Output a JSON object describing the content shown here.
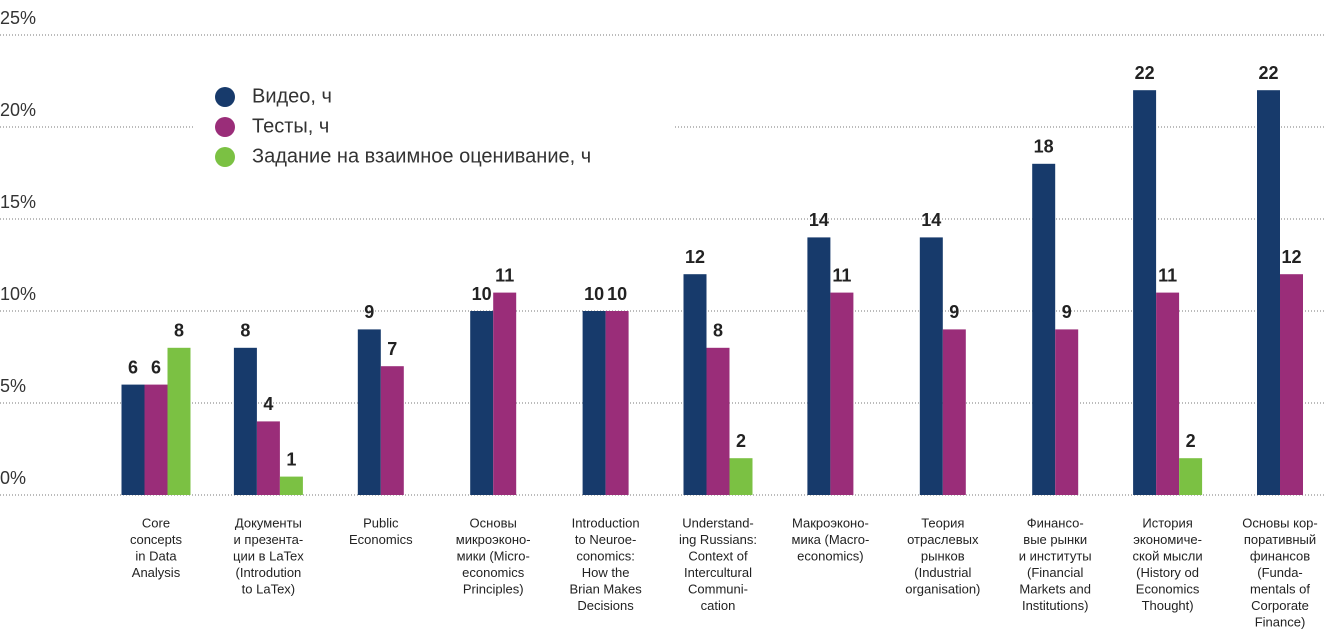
{
  "chart_data": {
    "type": "bar",
    "categories": [
      [
        "Core",
        "concepts",
        "in Data",
        "Analysis"
      ],
      [
        "Документы",
        "и презента-",
        "ции в LaTex",
        "(Introdution",
        "to LaTex)"
      ],
      [
        "Public",
        "Economics"
      ],
      [
        "Основы",
        "микроэконо-",
        "мики (Micro-",
        "economics",
        "Principles)"
      ],
      [
        "Introduction",
        "to Neuroe-",
        "conomics:",
        "How the",
        "Brian Makes",
        "Decisions"
      ],
      [
        "Understand-",
        "ing Russians:",
        "Context of",
        "Intercultural",
        "Communi-",
        "cation"
      ],
      [
        "Макроэконо-",
        "мика (Macro-",
        "economics)"
      ],
      [
        "Теория",
        "отраслевых",
        "рынков",
        "(Industrial",
        "organisation)"
      ],
      [
        "Финансо-",
        "вые рынки",
        "и институты",
        "(Financial",
        "Markets and",
        "Institutions)"
      ],
      [
        "История",
        "экономиче-",
        "ской мысли",
        "(History od",
        "Economics",
        "Thought)"
      ],
      [
        "Основы кор-",
        "поративный",
        "финансов",
        "(Funda-",
        "mentals of",
        "Corporate",
        "Finance)"
      ]
    ],
    "series": [
      {
        "name": "Видео, ч",
        "color": "#173a6b",
        "values": [
          6,
          8,
          9,
          10,
          10,
          12,
          14,
          14,
          18,
          22,
          22
        ]
      },
      {
        "name": "Тесты, ч",
        "color": "#9a2d79",
        "values": [
          6,
          4,
          7,
          11,
          10,
          8,
          11,
          9,
          9,
          11,
          12
        ]
      },
      {
        "name": "Задание на взаимное оценивание, ч",
        "color": "#7bc143",
        "values": [
          8,
          1,
          null,
          null,
          null,
          2,
          null,
          null,
          null,
          2,
          null
        ]
      }
    ],
    "ylim": [
      0,
      25
    ],
    "yticks": [
      {
        "value": 0,
        "label": "0%"
      },
      {
        "value": 5,
        "label": "5%"
      },
      {
        "value": 10,
        "label": "10%"
      },
      {
        "value": 15,
        "label": "15%"
      },
      {
        "value": 20,
        "label": "20%"
      },
      {
        "value": 25,
        "label": "25%"
      }
    ],
    "grid": true,
    "legend": "top-left"
  }
}
